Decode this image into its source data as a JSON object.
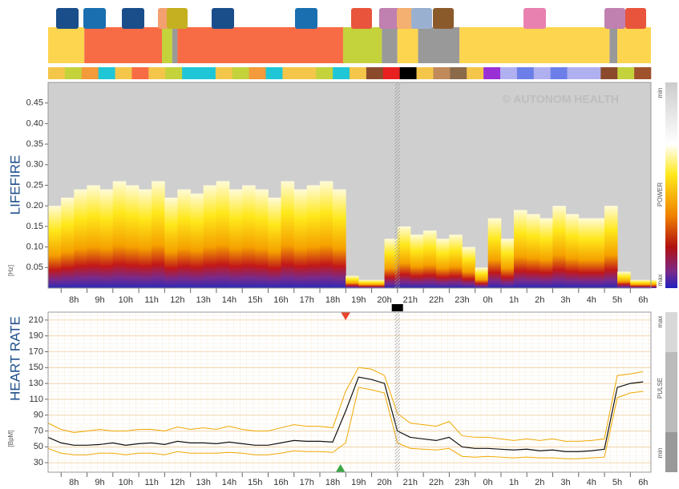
{
  "timeline": {
    "segments": [
      {
        "start": 7.0,
        "end": 8.4,
        "color": "#fdd54f"
      },
      {
        "start": 8.4,
        "end": 11.4,
        "color": "#f76b45"
      },
      {
        "start": 11.4,
        "end": 11.8,
        "color": "#c4d23c"
      },
      {
        "start": 11.8,
        "end": 12.0,
        "color": "#999999"
      },
      {
        "start": 12.0,
        "end": 18.4,
        "color": "#f76b45"
      },
      {
        "start": 18.4,
        "end": 19.9,
        "color": "#c4d23c"
      },
      {
        "start": 19.9,
        "end": 20.5,
        "color": "#999999"
      },
      {
        "start": 20.5,
        "end": 21.3,
        "color": "#fdd54f"
      },
      {
        "start": 21.3,
        "end": 22.9,
        "color": "#999999"
      },
      {
        "start": 22.9,
        "end": 28.7,
        "color": "#fdd54f"
      },
      {
        "start": 28.7,
        "end": 29.0,
        "color": "#999999"
      },
      {
        "start": 29.0,
        "end": 30.3,
        "color": "#fdd54f"
      }
    ],
    "strip": [
      "#f3c64a",
      "#c4d23c",
      "#f39a3a",
      "#1fc6d6",
      "#f3c64a",
      "#f76b45",
      "#f3c64a",
      "#c4d23c",
      "#1fc6d6",
      "#1fc6d6",
      "#f3c64a",
      "#c4d23c",
      "#f39a3a",
      "#1fc6d6",
      "#f3c64a",
      "#f3c64a",
      "#c4d23c",
      "#1fc6d6",
      "#f3c64a",
      "#8b4a2b",
      "#e82020",
      "#000000",
      "#f3c64a",
      "#c08a5a",
      "#8b6a4a",
      "#f3c64a",
      "#9a2fd6",
      "#b0b0f0",
      "#6c7fe8",
      "#b0b0f0",
      "#6c7fe8",
      "#b0b0f0",
      "#b0b0f0",
      "#8b4a2b",
      "#c4d23c",
      "#a0522d"
    ]
  },
  "chart_data": [
    {
      "type": "spectrogram",
      "y_label": "LIFEFIRE",
      "y_unit": "[Hz]",
      "watermark": "© AUTONOM HEALTH",
      "colorbar_label": "POWER",
      "colorbar_min": "min",
      "colorbar_max": "max",
      "x": [
        7,
        7.5,
        8,
        8.5,
        9,
        9.5,
        10,
        10.5,
        11,
        11.5,
        12,
        12.5,
        13,
        13.5,
        14,
        14.5,
        15,
        15.5,
        16,
        16.5,
        17,
        17.5,
        18,
        18.5,
        19,
        19.5,
        20,
        20.5,
        21,
        21.5,
        22,
        22.5,
        23,
        23.5,
        24,
        24.5,
        25,
        25.5,
        26,
        26.5,
        27,
        27.5,
        28,
        28.5,
        29,
        29.5,
        30
      ],
      "values": [
        0.2,
        0.22,
        0.24,
        0.25,
        0.24,
        0.26,
        0.25,
        0.24,
        0.26,
        0.22,
        0.24,
        0.23,
        0.25,
        0.26,
        0.24,
        0.25,
        0.24,
        0.22,
        0.26,
        0.24,
        0.25,
        0.26,
        0.24,
        0.03,
        0.02,
        0.02,
        0.12,
        0.15,
        0.13,
        0.14,
        0.12,
        0.13,
        0.1,
        0.05,
        0.17,
        0.12,
        0.19,
        0.18,
        0.17,
        0.2,
        0.18,
        0.17,
        0.17,
        0.2,
        0.04,
        0.02,
        0.02
      ],
      "xlim": [
        7.0,
        30.3
      ],
      "xticks": [
        {
          "value": 8,
          "label": "8h"
        },
        {
          "value": 9,
          "label": "9h"
        },
        {
          "value": 10,
          "label": "10h"
        },
        {
          "value": 11,
          "label": "11h"
        },
        {
          "value": 12,
          "label": "12h"
        },
        {
          "value": 13,
          "label": "13h"
        },
        {
          "value": 14,
          "label": "14h"
        },
        {
          "value": 15,
          "label": "15h"
        },
        {
          "value": 16,
          "label": "16h"
        },
        {
          "value": 17,
          "label": "17h"
        },
        {
          "value": 18,
          "label": "18h"
        },
        {
          "value": 19,
          "label": "19h"
        },
        {
          "value": 20,
          "label": "20h"
        },
        {
          "value": 21,
          "label": "21h"
        },
        {
          "value": 22,
          "label": "22h"
        },
        {
          "value": 23,
          "label": "23h"
        },
        {
          "value": 24,
          "label": "0h"
        },
        {
          "value": 25,
          "label": "1h"
        },
        {
          "value": 26,
          "label": "2h"
        },
        {
          "value": 27,
          "label": "3h"
        },
        {
          "value": 28,
          "label": "4h"
        },
        {
          "value": 29,
          "label": "5h"
        },
        {
          "value": 30,
          "label": "6h"
        }
      ],
      "ylim": [
        0,
        0.5
      ],
      "yticks": [
        0.05,
        {
          "value": 0.1,
          "label": "0.10"
        },
        0.15,
        {
          "value": 0.2,
          "label": "0.20"
        },
        0.25,
        {
          "value": 0.3,
          "label": "0.30"
        },
        0.35,
        {
          "value": 0.4,
          "label": "0.40"
        },
        0.45
      ],
      "excluded": [
        20.4,
        20.6
      ]
    },
    {
      "type": "line",
      "y_label": "HEART RATE",
      "y_unit": "[BpM]",
      "colorbar_label": "PULSE",
      "colorbar_min": "min",
      "colorbar_max": "max",
      "x": [
        7,
        7.5,
        8,
        8.5,
        9,
        9.5,
        10,
        10.5,
        11,
        11.5,
        12,
        12.5,
        13,
        13.5,
        14,
        14.5,
        15,
        15.5,
        16,
        16.5,
        17,
        17.5,
        18,
        18.5,
        19,
        19.5,
        20,
        20.5,
        21,
        21.5,
        22,
        22.5,
        23,
        23.5,
        24,
        24.5,
        25,
        25.5,
        26,
        26.5,
        27,
        27.5,
        28,
        28.5,
        29,
        29.5,
        30
      ],
      "series": [
        {
          "color": "#f0a800",
          "values": [
            80,
            72,
            68,
            70,
            72,
            70,
            70,
            72,
            72,
            70,
            75,
            72,
            74,
            72,
            76,
            72,
            70,
            70,
            74,
            78,
            76,
            76,
            74,
            120,
            150,
            148,
            140,
            92,
            80,
            78,
            76,
            82,
            64,
            62,
            62,
            60,
            58,
            60,
            58,
            60,
            57,
            57,
            58,
            60,
            140,
            142,
            145
          ]
        },
        {
          "color": "#f0a800",
          "values": [
            48,
            42,
            40,
            40,
            42,
            42,
            40,
            42,
            42,
            40,
            44,
            42,
            42,
            42,
            43,
            42,
            40,
            40,
            42,
            45,
            44,
            44,
            43,
            55,
            125,
            122,
            118,
            55,
            48,
            47,
            46,
            48,
            38,
            37,
            38,
            37,
            36,
            37,
            36,
            36,
            35,
            35,
            36,
            37,
            112,
            118,
            120
          ]
        },
        {
          "color": "#111111",
          "values": [
            62,
            55,
            52,
            52,
            53,
            55,
            52,
            54,
            55,
            53,
            57,
            55,
            55,
            54,
            56,
            54,
            52,
            52,
            55,
            58,
            57,
            57,
            56,
            95,
            138,
            135,
            130,
            70,
            62,
            60,
            58,
            62,
            50,
            48,
            48,
            47,
            46,
            47,
            45,
            46,
            44,
            44,
            45,
            47,
            125,
            130,
            132
          ]
        }
      ],
      "xlim": [
        7.0,
        30.3
      ],
      "xticks": [
        {
          "value": 8,
          "label": "8h"
        },
        {
          "value": 9,
          "label": "9h"
        },
        {
          "value": 10,
          "label": "10h"
        },
        {
          "value": 11,
          "label": "11h"
        },
        {
          "value": 12,
          "label": "12h"
        },
        {
          "value": 13,
          "label": "13h"
        },
        {
          "value": 14,
          "label": "14h"
        },
        {
          "value": 15,
          "label": "15h"
        },
        {
          "value": 16,
          "label": "16h"
        },
        {
          "value": 17,
          "label": "17h"
        },
        {
          "value": 18,
          "label": "18h"
        },
        {
          "value": 19,
          "label": "19h"
        },
        {
          "value": 20,
          "label": "20h"
        },
        {
          "value": 21,
          "label": "21h"
        },
        {
          "value": 22,
          "label": "22h"
        },
        {
          "value": 23,
          "label": "23h"
        },
        {
          "value": 24,
          "label": "0h"
        },
        {
          "value": 25,
          "label": "1h"
        },
        {
          "value": 26,
          "label": "2h"
        },
        {
          "value": 27,
          "label": "3h"
        },
        {
          "value": 28,
          "label": "4h"
        },
        {
          "value": 29,
          "label": "5h"
        },
        {
          "value": 30,
          "label": "6h"
        }
      ],
      "ylim": [
        18,
        220
      ],
      "yticks": [
        30,
        50,
        70,
        90,
        110,
        130,
        150,
        170,
        190,
        210
      ],
      "grid": true,
      "excluded": [
        20.4,
        20.6
      ],
      "markers": [
        {
          "x": 18.5,
          "color": "#e8452c",
          "shape": "down"
        },
        {
          "x": 18.3,
          "color": "#3aa845",
          "shape": "up"
        },
        {
          "x": 20.5,
          "color": "#000000",
          "shape": "square"
        }
      ]
    }
  ]
}
